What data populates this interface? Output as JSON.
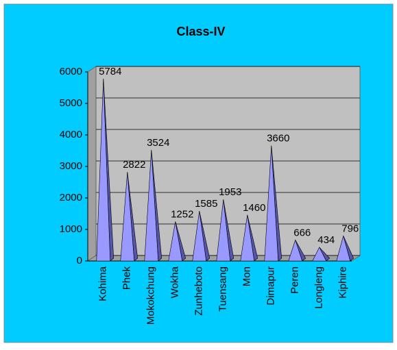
{
  "chart_data": {
    "type": "bar",
    "title": "Class-IV",
    "categories": [
      "Kohima",
      "Phek",
      "Mokokchung",
      "Wokha",
      "Zunheboto",
      "Tuensang",
      "Mon",
      "Dimapur",
      "Peren",
      "Longleng",
      "Kiphire"
    ],
    "values": [
      5784,
      2822,
      3524,
      1252,
      1585,
      1953,
      1460,
      3660,
      666,
      434,
      796
    ],
    "color": "#9999ff",
    "ylim": [
      0,
      6000
    ],
    "yticks": [
      0,
      1000,
      2000,
      3000,
      4000,
      5000,
      6000
    ],
    "grid": true
  }
}
